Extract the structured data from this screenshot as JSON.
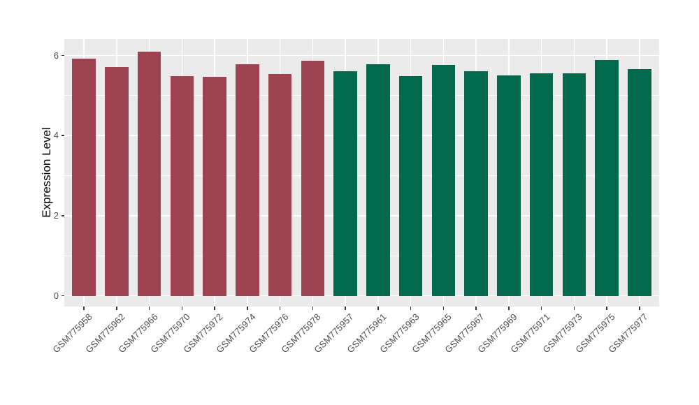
{
  "chart_data": {
    "type": "bar",
    "title": "",
    "xlabel": "",
    "ylabel": "Expression Level",
    "ylim": [
      -0.27,
      6.41
    ],
    "yticks_major": [
      0,
      2,
      4,
      6
    ],
    "yticks_minor": [
      1,
      3,
      5
    ],
    "grid": true,
    "legend_position": "none",
    "categories": [
      "GSM775958",
      "GSM775962",
      "GSM775966",
      "GSM775970",
      "GSM775972",
      "GSM775974",
      "GSM775976",
      "GSM775978",
      "GSM775957",
      "GSM775961",
      "GSM775963",
      "GSM775965",
      "GSM775967",
      "GSM775969",
      "GSM775971",
      "GSM775973",
      "GSM775975",
      "GSM775977"
    ],
    "values": [
      5.92,
      5.72,
      6.09,
      5.48,
      5.46,
      5.78,
      5.53,
      5.87,
      5.6,
      5.79,
      5.48,
      5.77,
      5.6,
      5.5,
      5.55,
      5.55,
      5.89,
      5.66
    ],
    "groups": [
      {
        "name": "group-1",
        "color": "#9E4352",
        "count": 8
      },
      {
        "name": "group-2",
        "color": "#02694C",
        "count": 10
      }
    ]
  },
  "style": {
    "figure_bg": "#FFFFFF",
    "panel_bg": "#EBEBEB",
    "grid_color": "#FFFFFF",
    "tick_text_color": "#4D4D4D",
    "axis_title_color": "#000000",
    "tick_mark_color": "#333333"
  }
}
